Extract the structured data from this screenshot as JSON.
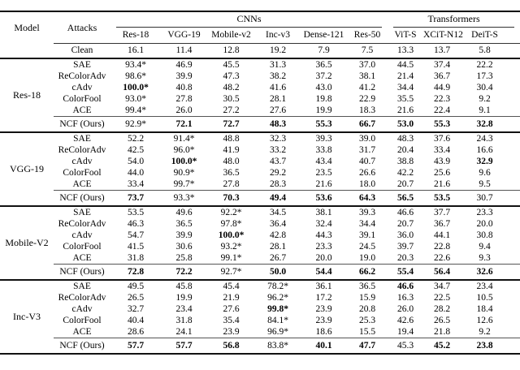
{
  "colors": {
    "background": "#ffffff",
    "text": "#000000",
    "rule_heavy": "#111111",
    "rule_light": "#333333"
  },
  "table": {
    "header": {
      "model_label": "Model",
      "attacks_label": "Attacks",
      "groups": [
        {
          "label": "CNNs"
        },
        {
          "label": "Transformers"
        }
      ],
      "columns": [
        "Res-18",
        "VGG-19",
        "Mobile-v2",
        "Inc-v3",
        "Dense-121",
        "Res-50",
        "ViT-S",
        "XCiT-N12",
        "DeiT-S"
      ]
    },
    "clean": {
      "label": "Clean",
      "values": [
        "16.1",
        "11.4",
        "12.8",
        "19.2",
        "7.9",
        "7.5",
        "13.3",
        "13.7",
        "5.8"
      ]
    },
    "blocks": [
      {
        "model": "Res-18",
        "attack_rows": [
          {
            "attack": "SAE",
            "values": [
              "93.4*",
              "46.9",
              "45.5",
              "31.3",
              "36.5",
              "37.0",
              "44.5",
              "37.4",
              "22.2"
            ],
            "bold": []
          },
          {
            "attack": "ReColorAdv",
            "values": [
              "98.6*",
              "39.9",
              "47.3",
              "38.2",
              "37.2",
              "38.1",
              "21.4",
              "36.7",
              "17.3"
            ],
            "bold": []
          },
          {
            "attack": "cAdv",
            "values": [
              "100.0*",
              "40.8",
              "48.2",
              "41.6",
              "43.0",
              "41.2",
              "34.4",
              "44.9",
              "30.4"
            ],
            "bold": [
              0
            ]
          },
          {
            "attack": "ColorFool",
            "values": [
              "93.0*",
              "27.8",
              "30.5",
              "28.1",
              "19.8",
              "22.9",
              "35.5",
              "22.3",
              "9.2"
            ],
            "bold": []
          },
          {
            "attack": "ACE",
            "values": [
              "99.4*",
              "26.0",
              "27.2",
              "27.6",
              "19.9",
              "18.3",
              "21.6",
              "22.4",
              "9.1"
            ],
            "bold": []
          }
        ],
        "ncf_row": {
          "attack": "NCF (Ours)",
          "values": [
            "92.9*",
            "72.1",
            "72.7",
            "48.3",
            "55.3",
            "66.7",
            "53.0",
            "55.3",
            "32.8"
          ],
          "bold": [
            1,
            2,
            3,
            4,
            5,
            6,
            7,
            8
          ]
        }
      },
      {
        "model": "VGG-19",
        "attack_rows": [
          {
            "attack": "SAE",
            "values": [
              "52.2",
              "91.4*",
              "48.8",
              "32.3",
              "39.3",
              "39.0",
              "48.3",
              "37.6",
              "24.3"
            ],
            "bold": []
          },
          {
            "attack": "ReColorAdv",
            "values": [
              "42.5",
              "96.0*",
              "41.9",
              "33.2",
              "33.8",
              "31.7",
              "20.4",
              "33.4",
              "16.6"
            ],
            "bold": []
          },
          {
            "attack": "cAdv",
            "values": [
              "54.0",
              "100.0*",
              "48.0",
              "43.7",
              "43.4",
              "40.7",
              "38.8",
              "43.9",
              "32.9"
            ],
            "bold": [
              1,
              8
            ]
          },
          {
            "attack": "ColorFool",
            "values": [
              "44.0",
              "90.9*",
              "36.5",
              "29.2",
              "23.5",
              "26.6",
              "42.2",
              "25.6",
              "9.6"
            ],
            "bold": []
          },
          {
            "attack": "ACE",
            "values": [
              "33.4",
              "99.7*",
              "27.8",
              "28.3",
              "21.6",
              "18.0",
              "20.7",
              "21.6",
              "9.5"
            ],
            "bold": []
          }
        ],
        "ncf_row": {
          "attack": "NCF (Ours)",
          "values": [
            "73.7",
            "93.3*",
            "70.3",
            "49.4",
            "53.6",
            "64.3",
            "56.5",
            "53.5",
            "30.7"
          ],
          "bold": [
            0,
            2,
            3,
            4,
            5,
            6,
            7
          ]
        }
      },
      {
        "model": "Mobile-V2",
        "attack_rows": [
          {
            "attack": "SAE",
            "values": [
              "53.5",
              "49.6",
              "92.2*",
              "34.5",
              "38.1",
              "39.3",
              "46.6",
              "37.7",
              "23.3"
            ],
            "bold": []
          },
          {
            "attack": "ReColorAdv",
            "values": [
              "46.3",
              "36.5",
              "97.8*",
              "36.4",
              "32.4",
              "34.4",
              "20.7",
              "36.7",
              "20.0"
            ],
            "bold": []
          },
          {
            "attack": "cAdv",
            "values": [
              "54.7",
              "39.9",
              "100.0*",
              "42.8",
              "44.3",
              "39.1",
              "36.0",
              "44.1",
              "30.8"
            ],
            "bold": [
              2
            ]
          },
          {
            "attack": "ColorFool",
            "values": [
              "41.5",
              "30.6",
              "93.2*",
              "28.1",
              "23.3",
              "24.5",
              "39.7",
              "22.8",
              "9.4"
            ],
            "bold": []
          },
          {
            "attack": "ACE",
            "values": [
              "31.8",
              "25.8",
              "99.1*",
              "26.7",
              "20.0",
              "19.0",
              "20.3",
              "22.6",
              "9.3"
            ],
            "bold": []
          }
        ],
        "ncf_row": {
          "attack": "NCF (Ours)",
          "values": [
            "72.8",
            "72.2",
            "92.7*",
            "50.0",
            "54.4",
            "66.2",
            "55.4",
            "56.4",
            "32.6"
          ],
          "bold": [
            0,
            1,
            3,
            4,
            5,
            6,
            7,
            8
          ]
        }
      },
      {
        "model": "Inc-V3",
        "attack_rows": [
          {
            "attack": "SAE",
            "values": [
              "49.5",
              "45.8",
              "45.4",
              "78.2*",
              "36.1",
              "36.5",
              "46.6",
              "34.7",
              "23.4"
            ],
            "bold": [
              6
            ]
          },
          {
            "attack": "ReColorAdv",
            "values": [
              "26.5",
              "19.9",
              "21.9",
              "96.2*",
              "17.2",
              "15.9",
              "16.3",
              "22.5",
              "10.5"
            ],
            "bold": []
          },
          {
            "attack": "cAdv",
            "values": [
              "32.7",
              "23.4",
              "27.6",
              "99.8*",
              "23.9",
              "20.8",
              "26.0",
              "28.2",
              "18.4"
            ],
            "bold": [
              3
            ]
          },
          {
            "attack": "ColorFool",
            "values": [
              "40.4",
              "31.8",
              "35.4",
              "84.1*",
              "23.9",
              "25.3",
              "42.6",
              "26.5",
              "12.6"
            ],
            "bold": []
          },
          {
            "attack": "ACE",
            "values": [
              "28.6",
              "24.1",
              "23.9",
              "96.9*",
              "18.6",
              "15.5",
              "19.4",
              "21.8",
              "9.2"
            ],
            "bold": []
          }
        ],
        "ncf_row": {
          "attack": "NCF (Ours)",
          "values": [
            "57.7",
            "57.7",
            "56.8",
            "83.8*",
            "40.1",
            "47.7",
            "45.3",
            "45.2",
            "23.8"
          ],
          "bold": [
            0,
            1,
            2,
            4,
            5,
            7,
            8
          ]
        }
      }
    ]
  }
}
